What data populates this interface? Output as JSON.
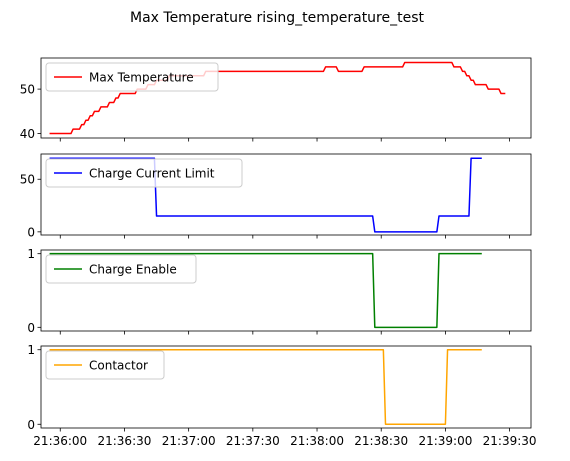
{
  "figure": {
    "title": "Max Temperature rising_temperature_test"
  },
  "chart_data": {
    "type": "line",
    "title": "Max Temperature rising_temperature_test",
    "x_ticks": [
      "21:36:00",
      "21:36:30",
      "21:37:00",
      "21:37:30",
      "21:38:00",
      "21:38:30",
      "21:39:00",
      "21:39:30"
    ],
    "xlim": [
      "21:35:51",
      "21:39:40"
    ],
    "grid": false,
    "subplots": [
      {
        "legend": "Max Temperature",
        "legend_loc": "upper left",
        "color": "#ff0000",
        "ylim": [
          39,
          57
        ],
        "yticks": [
          40,
          50
        ],
        "points": [
          [
            "21:35:55",
            40
          ],
          [
            "21:36:05",
            40
          ],
          [
            "21:36:06",
            41
          ],
          [
            "21:36:09",
            41
          ],
          [
            "21:36:10",
            42
          ],
          [
            "21:36:11",
            42
          ],
          [
            "21:36:12",
            43
          ],
          [
            "21:36:13",
            43
          ],
          [
            "21:36:14",
            44
          ],
          [
            "21:36:15",
            44
          ],
          [
            "21:36:16",
            45
          ],
          [
            "21:36:18",
            45
          ],
          [
            "21:36:19",
            46
          ],
          [
            "21:36:22",
            46
          ],
          [
            "21:36:23",
            47
          ],
          [
            "21:36:25",
            47
          ],
          [
            "21:36:26",
            48
          ],
          [
            "21:36:27",
            48
          ],
          [
            "21:36:28",
            49
          ],
          [
            "21:36:35",
            49
          ],
          [
            "21:36:36",
            50
          ],
          [
            "21:36:40",
            50
          ],
          [
            "21:36:41",
            51
          ],
          [
            "21:36:44",
            51
          ],
          [
            "21:36:45",
            52
          ],
          [
            "21:36:50",
            52
          ],
          [
            "21:36:51",
            53
          ],
          [
            "21:37:07",
            53
          ],
          [
            "21:37:08",
            54
          ],
          [
            "21:38:03",
            54
          ],
          [
            "21:38:04",
            55
          ],
          [
            "21:38:09",
            55
          ],
          [
            "21:38:10",
            54
          ],
          [
            "21:38:21",
            54
          ],
          [
            "21:38:22",
            55
          ],
          [
            "21:38:40",
            55
          ],
          [
            "21:38:41",
            56
          ],
          [
            "21:39:03",
            56
          ],
          [
            "21:39:04",
            55
          ],
          [
            "21:39:07",
            55
          ],
          [
            "21:39:08",
            54
          ],
          [
            "21:39:09",
            54
          ],
          [
            "21:39:10",
            53
          ],
          [
            "21:39:11",
            53
          ],
          [
            "21:39:12",
            52
          ],
          [
            "21:39:13",
            52
          ],
          [
            "21:39:14",
            51
          ],
          [
            "21:39:19",
            51
          ],
          [
            "21:39:20",
            50
          ],
          [
            "21:39:25",
            50
          ],
          [
            "21:39:26",
            49
          ],
          [
            "21:39:28",
            49
          ]
        ]
      },
      {
        "legend": "Charge Current Limit",
        "legend_loc": "upper left",
        "color": "#0000ff",
        "ylim": [
          -3,
          74
        ],
        "yticks": [
          0,
          50
        ],
        "points": [
          [
            "21:35:55",
            70
          ],
          [
            "21:36:44",
            70
          ],
          [
            "21:36:45",
            15
          ],
          [
            "21:38:26",
            15
          ],
          [
            "21:38:27",
            0
          ],
          [
            "21:38:56",
            0
          ],
          [
            "21:38:57",
            15
          ],
          [
            "21:39:11",
            15
          ],
          [
            "21:39:12",
            70
          ],
          [
            "21:39:17",
            70
          ]
        ]
      },
      {
        "legend": "Charge Enable",
        "legend_loc": "upper left",
        "color": "#008000",
        "ylim": [
          -0.05,
          1.05
        ],
        "yticks": [
          0,
          1
        ],
        "points": [
          [
            "21:35:55",
            1
          ],
          [
            "21:38:26",
            1
          ],
          [
            "21:38:27",
            0
          ],
          [
            "21:38:56",
            0
          ],
          [
            "21:38:57",
            1
          ],
          [
            "21:39:17",
            1
          ]
        ]
      },
      {
        "legend": "Contactor",
        "legend_loc": "upper left",
        "color": "#ffa500",
        "ylim": [
          -0.05,
          1.05
        ],
        "yticks": [
          0,
          1
        ],
        "points": [
          [
            "21:35:55",
            1
          ],
          [
            "21:38:31",
            1
          ],
          [
            "21:38:32",
            0
          ],
          [
            "21:39:00",
            0
          ],
          [
            "21:39:01",
            1
          ],
          [
            "21:39:17",
            1
          ]
        ]
      }
    ]
  }
}
